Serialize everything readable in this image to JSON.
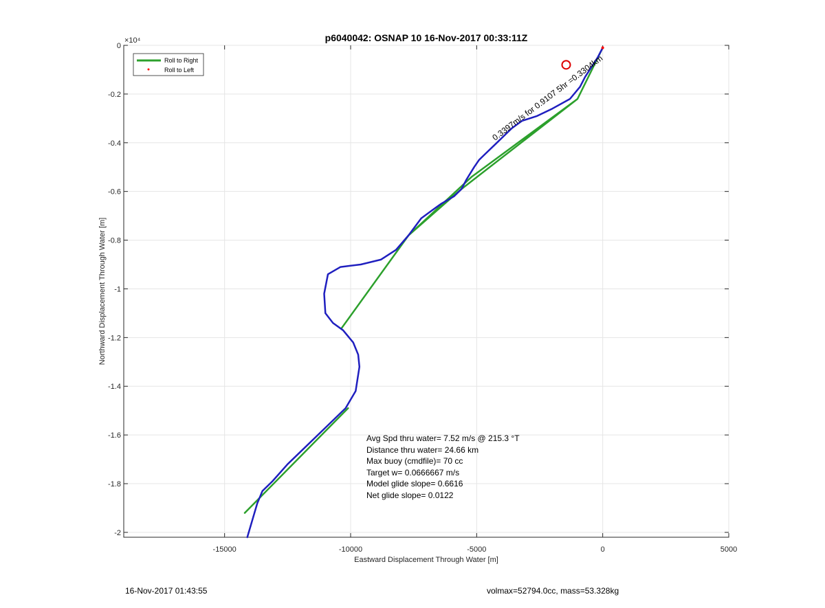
{
  "chart_data": {
    "type": "line",
    "title": "p6040042: OSNAP 10 16-Nov-2017 00:33:11Z",
    "xlabel": "Eastward Displacement Through Water [m]",
    "ylabel": "Northward Displacement Through Water [m]",
    "xlim": [
      -19000,
      5000
    ],
    "ylim": [
      -2.02,
      0
    ],
    "y_exponent_label": "×10⁴",
    "x_ticks": [
      -15000,
      -10000,
      -5000,
      0,
      5000
    ],
    "x_tick_labels": [
      "-15000",
      "-10000",
      "-5000",
      "0",
      "5000"
    ],
    "y_ticks": [
      0,
      -0.2,
      -0.4,
      -0.6,
      -0.8,
      -1,
      -1.2,
      -1.4,
      -1.6,
      -1.8,
      -2
    ],
    "y_tick_labels": [
      "0",
      "-0.2",
      "-0.4",
      "-0.6",
      "-0.8",
      "-1",
      "-1.2",
      "-1.4",
      "-1.6",
      "-1.8",
      "-2"
    ],
    "grid": true,
    "legend": {
      "placement": "top-left",
      "entries": [
        "Roll to Right",
        "Roll to Left"
      ]
    },
    "colors": {
      "track": "#1f1fbf",
      "roll_right": "#2ca02c",
      "roll_left": "#ff0000",
      "marker": "#dd0000"
    },
    "series": [
      {
        "name": "Roll to Right",
        "x": [
          0,
          -1000,
          -5200,
          -7700,
          -10350,
          -7700,
          -5600,
          -1000,
          0
        ],
        "y": [
          -0.01,
          -0.22,
          -0.54,
          -0.78,
          -1.16,
          -0.78,
          -0.59,
          -0.22,
          -0.01
        ]
      },
      {
        "name": "Track",
        "x": [
          0,
          -200,
          -700,
          -900,
          -1300,
          -2000,
          -2600,
          -3200,
          -3600,
          -3900,
          -4200,
          -4700,
          -4900,
          -5100,
          -5400,
          -5600,
          -5900,
          -6400,
          -6800,
          -7200,
          -7700,
          -8200,
          -8800,
          -9600,
          -10400,
          -10900,
          -11050,
          -11000,
          -10700,
          -10300,
          -9900,
          -9700,
          -9650,
          -9800,
          -10200,
          -10900,
          -11700,
          -12500,
          -13100,
          -13500,
          -13700,
          -13900,
          -14100
        ],
        "y": [
          -0.01,
          -0.05,
          -0.13,
          -0.17,
          -0.22,
          -0.26,
          -0.29,
          -0.31,
          -0.34,
          -0.37,
          -0.4,
          -0.45,
          -0.47,
          -0.5,
          -0.55,
          -0.59,
          -0.62,
          -0.65,
          -0.68,
          -0.71,
          -0.78,
          -0.84,
          -0.88,
          -0.9,
          -0.91,
          -0.94,
          -1.02,
          -1.1,
          -1.14,
          -1.17,
          -1.22,
          -1.27,
          -1.32,
          -1.42,
          -1.49,
          -1.56,
          -1.64,
          -1.72,
          -1.79,
          -1.83,
          -1.88,
          -1.95,
          -2.02
        ]
      },
      {
        "name": "Net",
        "x": [
          -10100,
          -14200
        ],
        "y": [
          -1.49,
          -1.92
        ]
      }
    ],
    "markers": [
      {
        "name": "end-marker",
        "x": -1450,
        "y": -0.08
      }
    ],
    "rotated_annotation": "0.3397m/s for 0.9107 5hr =0.3304km",
    "stats_lines": [
      "Avg Spd thru water=  7.52 m/s @ 215.3 °T",
      "Distance thru water= 24.66 km",
      "Max buoy (cmdfile)= 70 cc",
      "Target w= 0.0666667 m/s",
      "Model glide slope= 0.6616",
      "Net glide slope= 0.0122"
    ]
  },
  "footer": {
    "left": "16-Nov-2017 01:43:55",
    "right": "volmax=52794.0cc, mass=53.328kg"
  }
}
